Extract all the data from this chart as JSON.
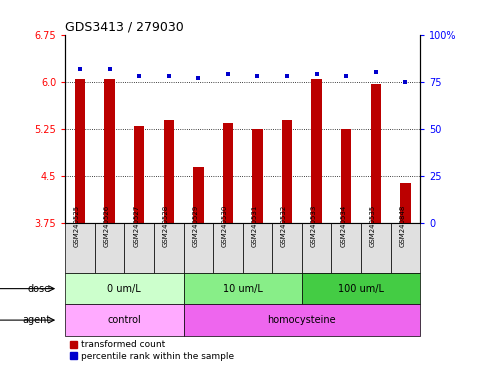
{
  "title": "GDS3413 / 279030",
  "samples": [
    "GSM240525",
    "GSM240526",
    "GSM240527",
    "GSM240528",
    "GSM240529",
    "GSM240530",
    "GSM240531",
    "GSM240532",
    "GSM240533",
    "GSM240534",
    "GSM240535",
    "GSM240848"
  ],
  "bar_values": [
    6.05,
    6.05,
    5.3,
    5.4,
    4.65,
    5.35,
    5.25,
    5.4,
    6.05,
    5.25,
    5.97,
    4.4
  ],
  "dot_values": [
    82,
    82,
    78,
    78,
    77,
    79,
    78,
    78,
    79,
    78,
    80,
    75
  ],
  "bar_color": "#bb0000",
  "dot_color": "#0000cc",
  "ylim_left": [
    3.75,
    6.75
  ],
  "yticks_left": [
    3.75,
    4.5,
    5.25,
    6.0,
    6.75
  ],
  "ylim_right": [
    0,
    100
  ],
  "yticks_right": [
    0,
    25,
    50,
    75,
    100
  ],
  "ytick_labels_right": [
    "0",
    "25",
    "50",
    "75",
    "100%"
  ],
  "gridlines": [
    4.5,
    5.25,
    6.0
  ],
  "dose_groups": [
    {
      "label": "0 um/L",
      "start": 0,
      "end": 4,
      "color": "#ccffcc"
    },
    {
      "label": "10 um/L",
      "start": 4,
      "end": 8,
      "color": "#88ee88"
    },
    {
      "label": "100 um/L",
      "start": 8,
      "end": 12,
      "color": "#44cc44"
    }
  ],
  "agent_groups": [
    {
      "label": "control",
      "start": 0,
      "end": 4,
      "color": "#ffaaff"
    },
    {
      "label": "homocysteine",
      "start": 4,
      "end": 12,
      "color": "#ee66ee"
    }
  ],
  "dose_label": "dose",
  "agent_label": "agent",
  "legend_bar": "transformed count",
  "legend_dot": "percentile rank within the sample",
  "background_color": "#ffffff",
  "sample_box_color": "#e0e0e0"
}
